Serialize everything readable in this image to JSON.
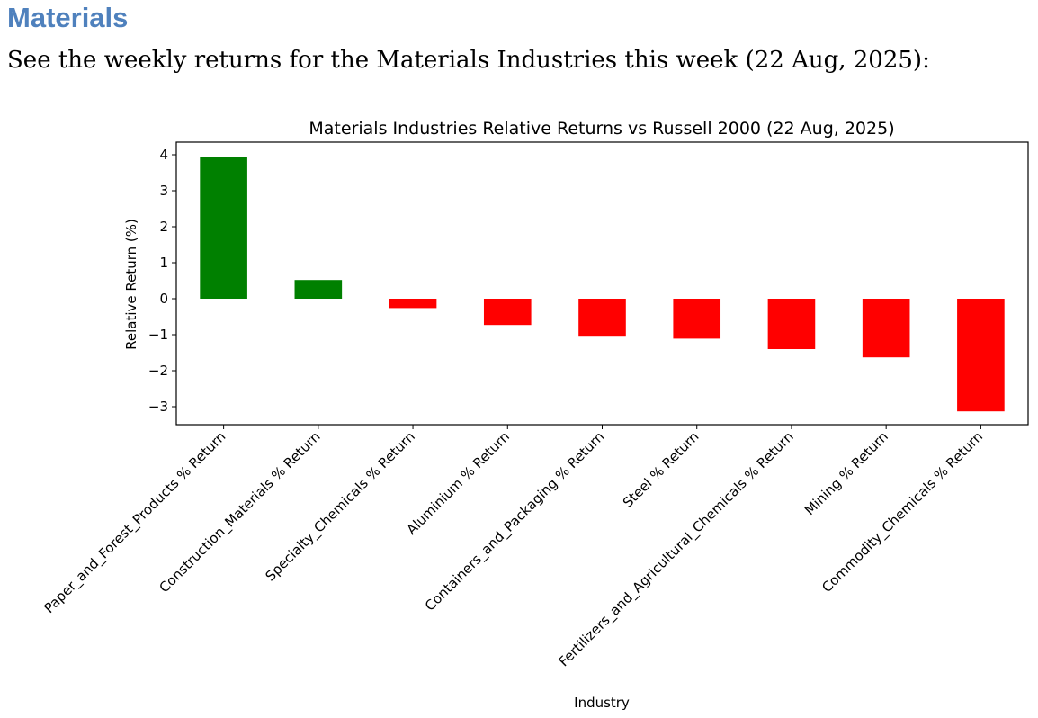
{
  "page": {
    "heading": "Materials",
    "intro": "See the weekly returns for the Materials Industries this week (22 Aug, 2025):"
  },
  "chart_data": {
    "type": "bar",
    "title": "Materials Industries Relative Returns vs Russell 2000 (22 Aug, 2025)",
    "xlabel": "Industry",
    "ylabel": "Relative Return (%)",
    "ylim": [
      -3.5,
      4.35
    ],
    "yticks": [
      4,
      3,
      2,
      1,
      0,
      -1,
      -2,
      -3
    ],
    "ytick_labels": [
      "4",
      "3",
      "2",
      "1",
      "0",
      "−1",
      "−2",
      "−3"
    ],
    "categories": [
      "Paper_and_Forest_Products % Return",
      "Construction_Materials % Return",
      "Specialty_Chemicals % Return",
      "Aluminium % Return",
      "Containers_and_Packaging % Return",
      "Steel % Return",
      "Fertilizers_and_Agricultural_Chemicals % Return",
      "Mining % Return",
      "Commodity_Chemicals % Return"
    ],
    "values": [
      3.95,
      0.52,
      -0.26,
      -0.73,
      -1.03,
      -1.11,
      -1.4,
      -1.63,
      -3.13
    ],
    "colors": {
      "positive": "#008000",
      "negative": "#ff0000"
    },
    "grid": false,
    "legend": "none"
  }
}
